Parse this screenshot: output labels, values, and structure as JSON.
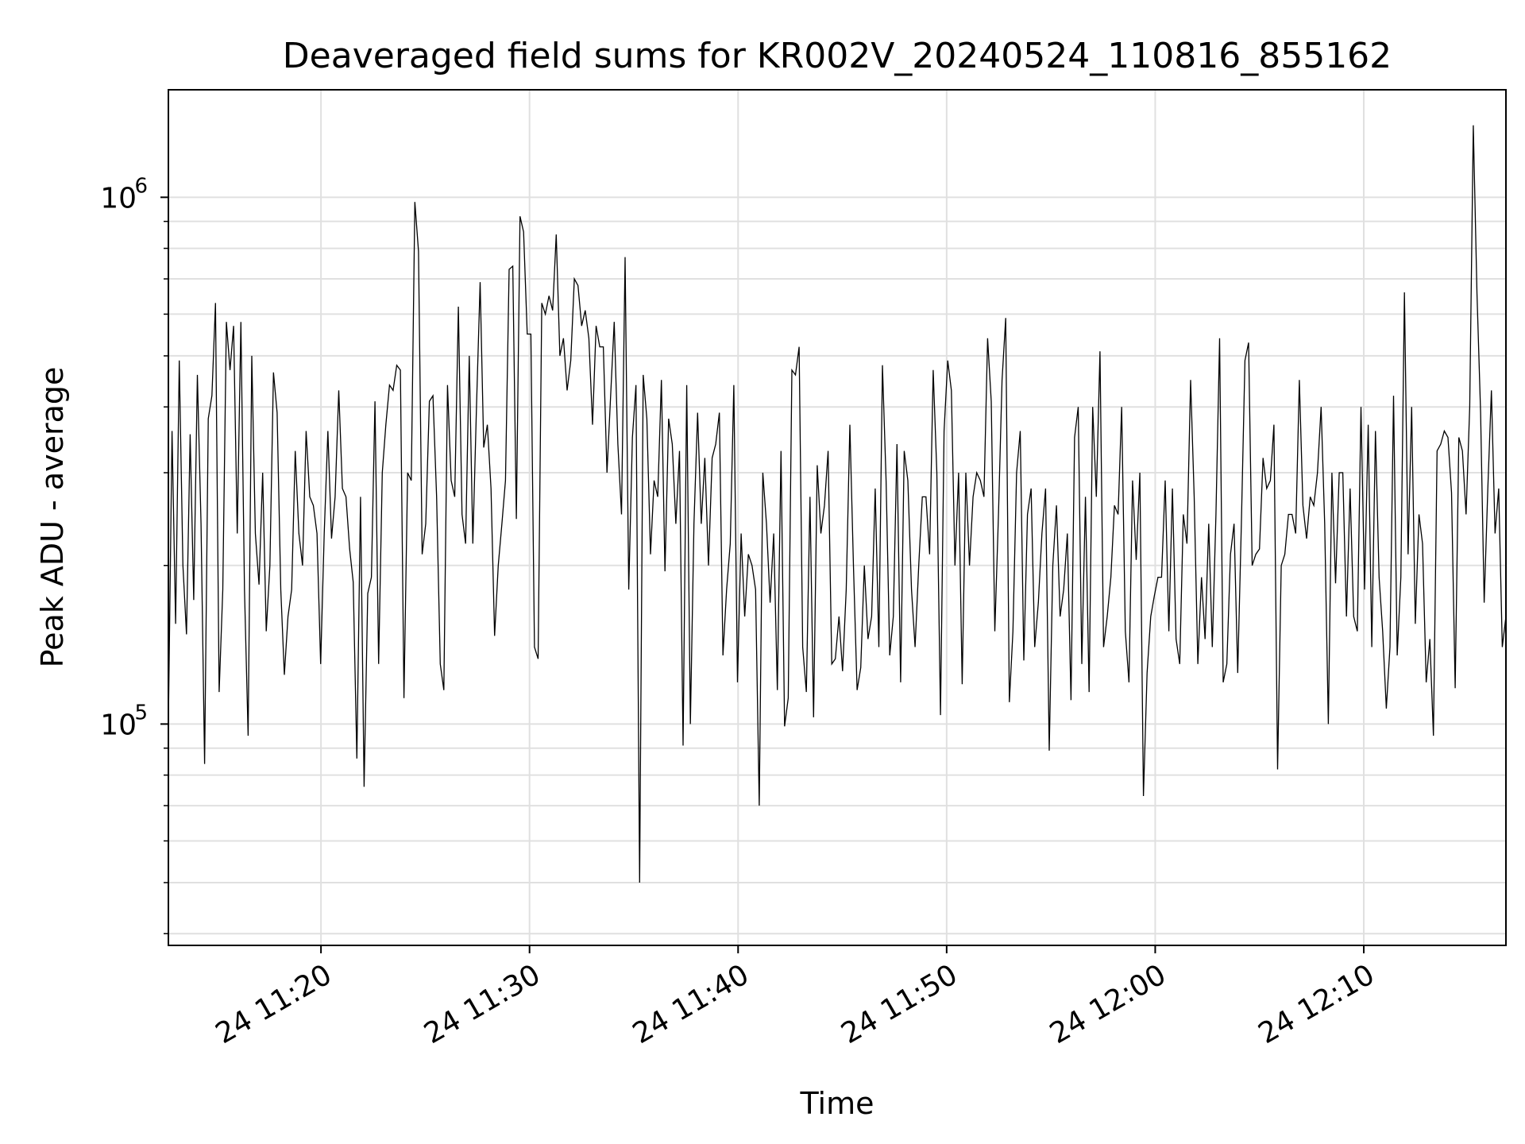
{
  "chart_data": {
    "type": "line",
    "title": "Deaveraged field sums for KR002V_20240524_110816_855162",
    "xlabel": "Time",
    "ylabel": "Peak ADU - average",
    "yscale": "log",
    "ylim": [
      38000,
      1600000
    ],
    "xlim": [
      "2024-05-24 11:12:41",
      "2024-05-24 12:16:49"
    ],
    "grid": true,
    "line_color": "#000000",
    "x_tick_labels": [
      "24 11:20",
      "24 11:30",
      "24 11:40",
      "24 11:50",
      "24 12:00",
      "24 12:10"
    ],
    "x_tick_times": [
      "2024-05-24 11:20:00",
      "2024-05-24 11:30:00",
      "2024-05-24 11:40:00",
      "2024-05-24 11:50:00",
      "2024-05-24 12:00:00",
      "2024-05-24 12:10:00"
    ],
    "y_tick_labels": [
      {
        "base": "10",
        "exp": "5",
        "value": 100000
      },
      {
        "base": "10",
        "exp": "6",
        "value": 1000000
      }
    ],
    "series": [
      {
        "x_start": "2024-05-24 11:12:41",
        "x_end": "2024-05-24 12:16:49",
        "values": [
          100000,
          360000,
          155000,
          490000,
          200000,
          148000,
          355000,
          172000,
          460000,
          240000,
          84000,
          380000,
          420000,
          630000,
          115000,
          180000,
          580000,
          470000,
          570000,
          230000,
          580000,
          180000,
          95000,
          500000,
          230000,
          184000,
          300000,
          150000,
          200000,
          465000,
          390000,
          180000,
          124000,
          160000,
          180000,
          330000,
          230000,
          200000,
          360000,
          270000,
          260000,
          230000,
          130000,
          230000,
          360000,
          225000,
          270000,
          430000,
          280000,
          270000,
          215000,
          186000,
          86000,
          270000,
          76000,
          177000,
          190000,
          410000,
          130000,
          300000,
          370000,
          440000,
          430000,
          480000,
          470000,
          112000,
          300000,
          290000,
          980000,
          790000,
          210000,
          240000,
          410000,
          420000,
          270000,
          130000,
          116000,
          440000,
          290000,
          270000,
          620000,
          250000,
          220000,
          500000,
          220000,
          400000,
          690000,
          335000,
          370000,
          280000,
          147000,
          200000,
          240000,
          290000,
          730000,
          740000,
          245000,
          920000,
          860000,
          550000,
          550000,
          140000,
          133000,
          630000,
          600000,
          650000,
          610000,
          850000,
          500000,
          540000,
          430000,
          490000,
          700000,
          680000,
          570000,
          610000,
          540000,
          370000,
          570000,
          520000,
          520000,
          300000,
          420000,
          580000,
          340000,
          250000,
          770000,
          180000,
          350000,
          440000,
          50000,
          460000,
          380000,
          210000,
          290000,
          270000,
          450000,
          195000,
          380000,
          340000,
          240000,
          330000,
          91000,
          440000,
          100000,
          240000,
          390000,
          240000,
          320000,
          200000,
          320000,
          340000,
          390000,
          135000,
          180000,
          220000,
          440000,
          120000,
          230000,
          160000,
          210000,
          200000,
          180000,
          70000,
          300000,
          240000,
          170000,
          230000,
          116000,
          330000,
          99000,
          112000,
          470000,
          460000,
          520000,
          140000,
          115000,
          270000,
          103000,
          310000,
          230000,
          260000,
          330000,
          130000,
          133000,
          160000,
          126000,
          180000,
          370000,
          200000,
          116000,
          128000,
          200000,
          145000,
          160000,
          280000,
          140000,
          480000,
          290000,
          135000,
          160000,
          340000,
          120000,
          330000,
          290000,
          180000,
          140000,
          200000,
          270000,
          270000,
          210000,
          470000,
          300000,
          104000,
          360000,
          490000,
          430000,
          200000,
          300000,
          119000,
          300000,
          200000,
          270000,
          300000,
          290000,
          270000,
          540000,
          410000,
          150000,
          250000,
          450000,
          590000,
          110000,
          150000,
          300000,
          360000,
          132000,
          250000,
          280000,
          140000,
          170000,
          230000,
          280000,
          89000,
          200000,
          260000,
          160000,
          180000,
          230000,
          111000,
          350000,
          400000,
          130000,
          270000,
          115000,
          400000,
          270000,
          510000,
          140000,
          160000,
          190000,
          260000,
          250000,
          400000,
          150000,
          120000,
          290000,
          205000,
          300000,
          73000,
          125000,
          160000,
          175000,
          190000,
          190000,
          290000,
          150000,
          280000,
          145000,
          130000,
          250000,
          220000,
          450000,
          270000,
          130000,
          190000,
          145000,
          240000,
          140000,
          250000,
          540000,
          120000,
          130000,
          210000,
          240000,
          125000,
          240000,
          490000,
          530000,
          200000,
          210000,
          215000,
          320000,
          280000,
          290000,
          370000,
          82000,
          200000,
          210000,
          250000,
          250000,
          230000,
          450000,
          260000,
          225000,
          270000,
          260000,
          300000,
          400000,
          240000,
          100000,
          300000,
          185000,
          300000,
          300000,
          160000,
          280000,
          160000,
          150000,
          400000,
          180000,
          370000,
          140000,
          360000,
          190000,
          150000,
          107000,
          140000,
          420000,
          135000,
          190000,
          660000,
          210000,
          400000,
          155000,
          250000,
          220000,
          120000,
          145000,
          95000,
          330000,
          340000,
          360000,
          350000,
          275000,
          117000,
          350000,
          330000,
          250000,
          400000,
          1370000,
          660000,
          390000,
          170000,
          280000,
          430000,
          230000,
          280000,
          140000,
          160000
        ]
      }
    ]
  }
}
